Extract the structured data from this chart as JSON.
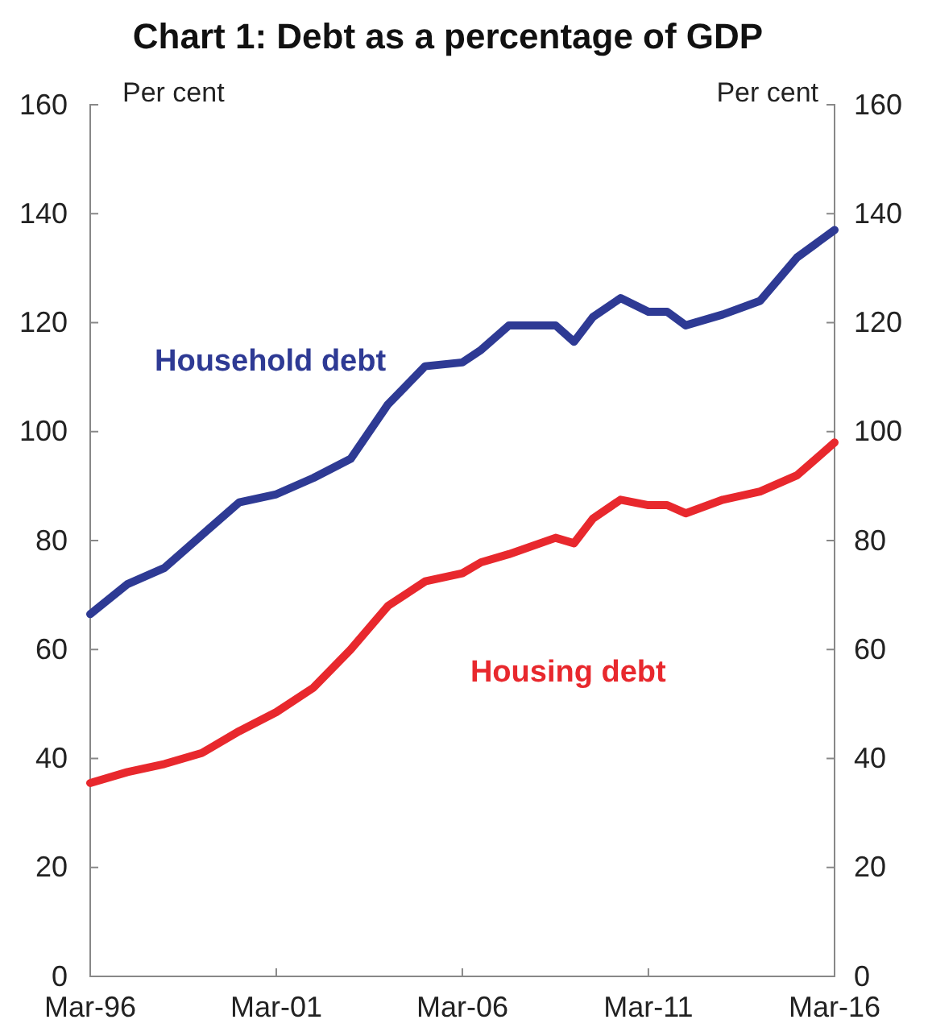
{
  "chart_data": {
    "type": "line",
    "title": "Chart 1: Debt as a percentage of GDP",
    "ylabel": "Per cent",
    "y2label": "Per cent",
    "x": [
      "1996-03",
      "1997-03",
      "1998-03",
      "1999-03",
      "2000-03",
      "2001-03",
      "2002-03",
      "2003-03",
      "2004-03",
      "2005-03",
      "2006-03",
      "2006-09",
      "2007-06",
      "2008-09",
      "2009-03",
      "2009-09",
      "2010-06",
      "2011-03",
      "2011-09",
      "2012-03",
      "2013-03",
      "2014-03",
      "2015-03",
      "2016-03"
    ],
    "series": [
      {
        "name": "Household debt",
        "color": "#2e3a94",
        "values": [
          66.5,
          72,
          75,
          81,
          87,
          88.5,
          91.5,
          95,
          105,
          112,
          112.7,
          115,
          119.5,
          119.5,
          116.5,
          121,
          124.5,
          122,
          122,
          119.5,
          121.5,
          124,
          132,
          137
        ]
      },
      {
        "name": "Housing debt",
        "color": "#e8282d",
        "values": [
          35.5,
          37.5,
          39,
          41,
          45,
          48.5,
          53,
          60,
          68,
          72.5,
          74,
          76,
          77.5,
          80.5,
          79.5,
          84,
          87.5,
          86.5,
          86.5,
          85,
          87.5,
          89,
          92,
          98
        ]
      }
    ],
    "xlim": [
      "1996-03",
      "2016-03"
    ],
    "xticks": [
      {
        "value": "1996-03",
        "label": "Mar-96"
      },
      {
        "value": "2001-03",
        "label": "Mar-01"
      },
      {
        "value": "2006-03",
        "label": "Mar-06"
      },
      {
        "value": "2011-03",
        "label": "Mar-11"
      },
      {
        "value": "2016-03",
        "label": "Mar-16"
      }
    ],
    "ylim": [
      0,
      160
    ],
    "yticks": [
      0,
      20,
      40,
      60,
      80,
      100,
      120,
      140,
      160
    ],
    "y2lim": [
      0,
      160
    ],
    "y2ticks": [
      0,
      20,
      40,
      60,
      80,
      100,
      120,
      140,
      160
    ],
    "grid": false,
    "legend": false,
    "line_style": "solid",
    "marker": "none"
  }
}
